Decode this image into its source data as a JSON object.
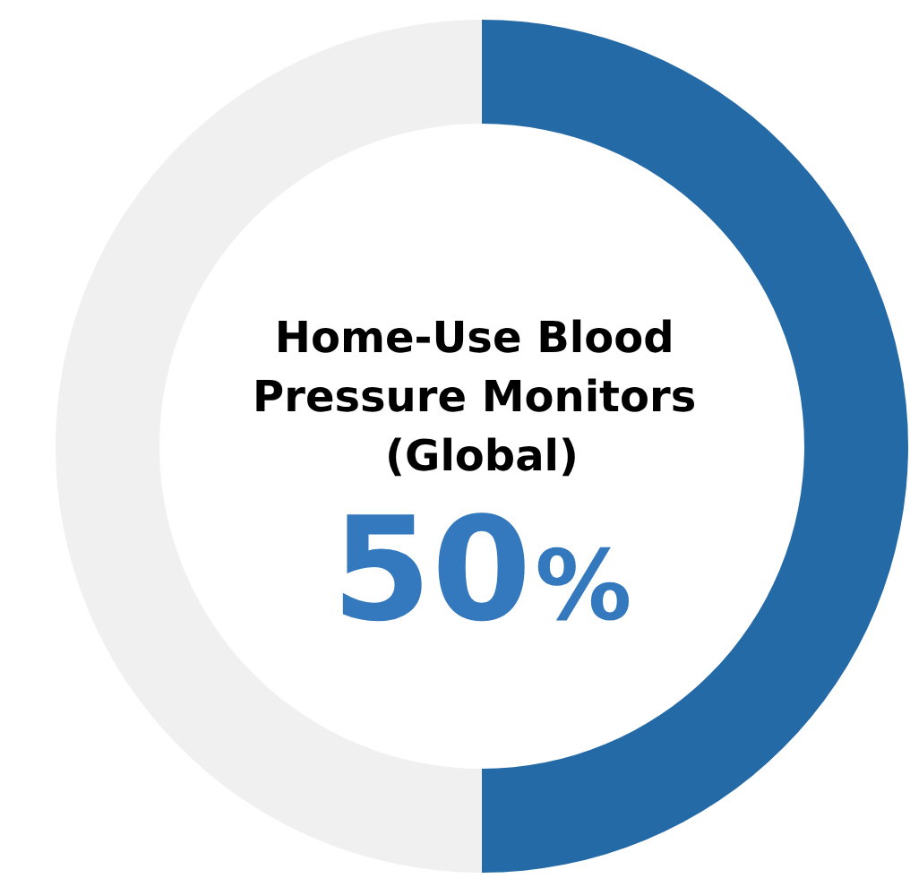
{
  "chart_data": {
    "type": "donut",
    "title": "Home-Use Blood Pressure Monitors (Global)",
    "categories": [
      null,
      null
    ],
    "values": [
      50,
      50
    ],
    "colors": [
      "#246aa6",
      "#f0f0f0"
    ],
    "value_labels": [
      "50%",
      null
    ]
  }
}
